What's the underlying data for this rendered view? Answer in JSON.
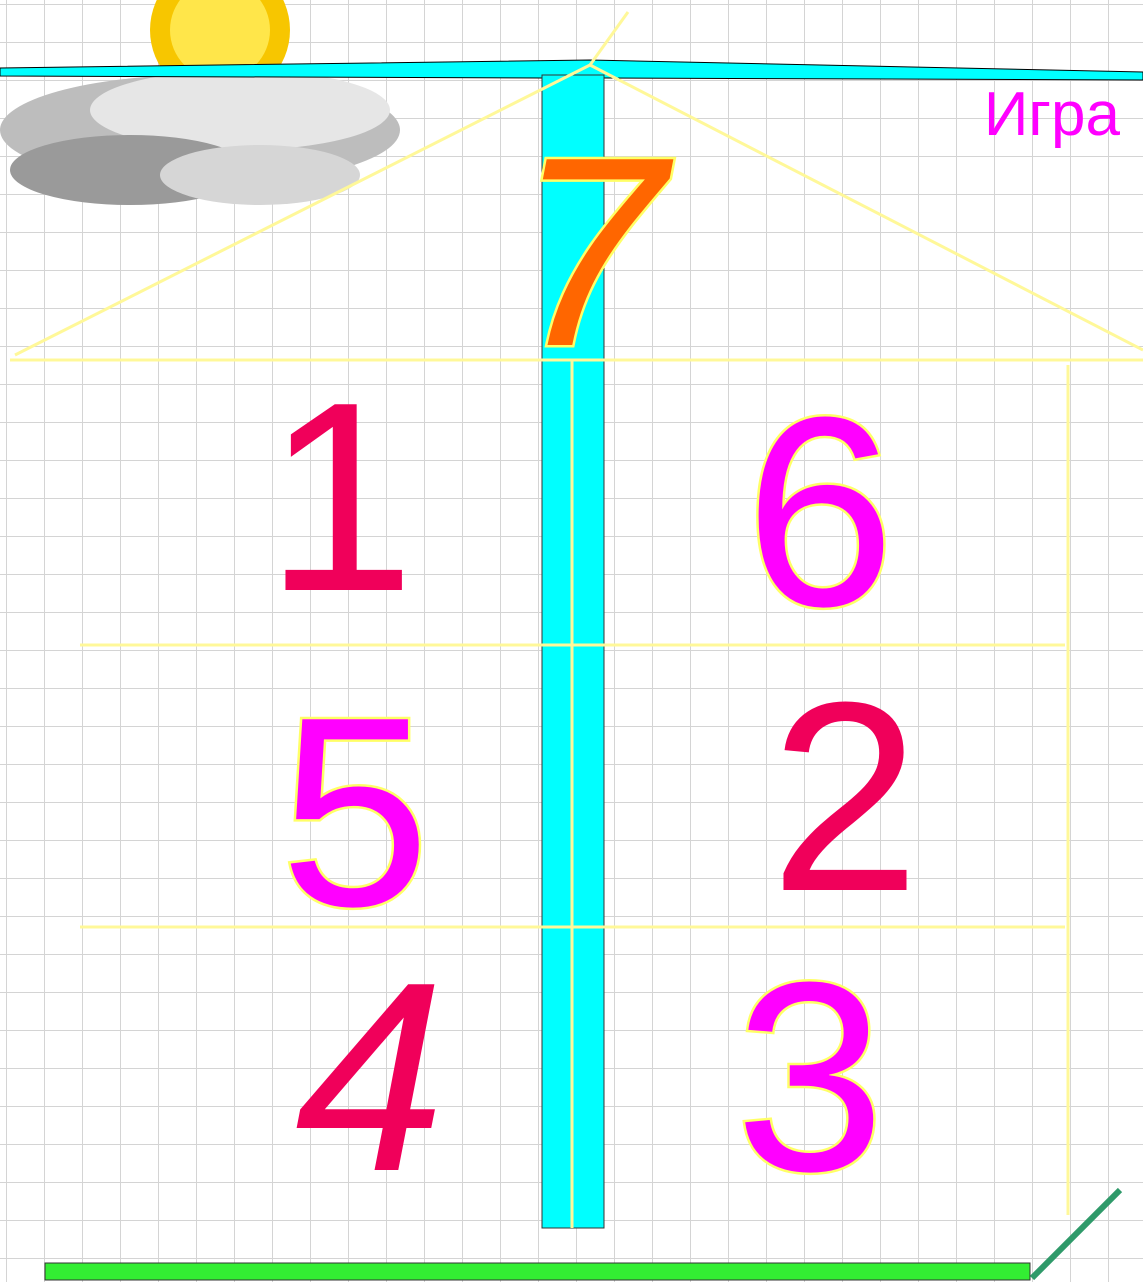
{
  "header": {
    "title": "Игра"
  },
  "roof": {
    "number": "7"
  },
  "rooms": [
    [
      "1",
      "6"
    ],
    [
      "5",
      "2"
    ],
    [
      "4",
      "3"
    ]
  ]
}
